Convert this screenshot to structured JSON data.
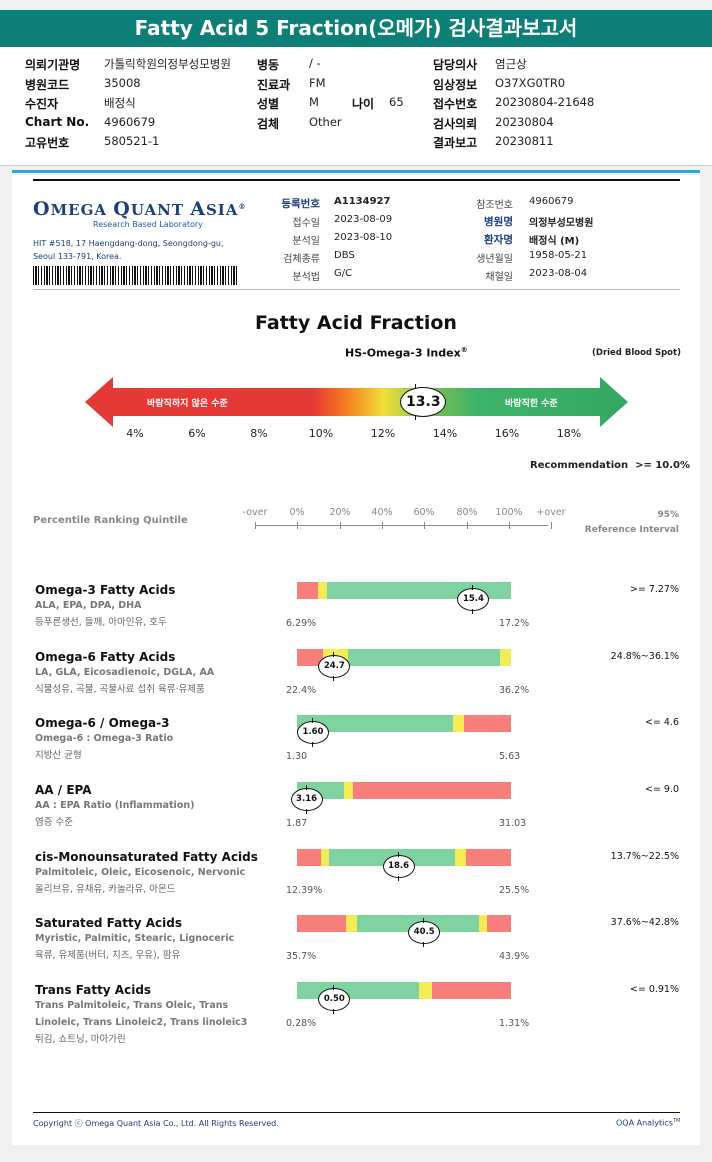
{
  "header": {
    "title": "Fatty Acid 5 Fraction(오메가) 검사결과보고서",
    "left": [
      {
        "label": "의뢰기관명",
        "value": "가톨릭학원의정부성모병원"
      },
      {
        "label": "병원코드",
        "value": "35008"
      },
      {
        "label": "수진자",
        "value": "배정식"
      },
      {
        "label": "Chart No.",
        "value": "4960679"
      },
      {
        "label": "고유번호",
        "value": "580521-1"
      }
    ],
    "mid": [
      {
        "label": "병동",
        "value": "/ -"
      },
      {
        "label": "진료과",
        "value": "FM"
      },
      {
        "label": "성별",
        "value": "M"
      },
      {
        "label": "검체",
        "value": "Other"
      }
    ],
    "age": {
      "label": "나이",
      "value": "65"
    },
    "right": [
      {
        "label": "담당의사",
        "value": "염근상"
      },
      {
        "label": "임상정보",
        "value": "O37XG0TR0"
      },
      {
        "label": "접수번호",
        "value": "20230804-21648"
      },
      {
        "label": "검사의뢰",
        "value": "20230804"
      },
      {
        "label": "결과보고",
        "value": "20230811"
      }
    ]
  },
  "lab": {
    "logo_part1": "O",
    "logo_part2": "MEGA ",
    "logo_part3": "Q",
    "logo_part4": "UANT ",
    "logo_part5": "A",
    "logo_part6": "SIA",
    "logo_reg": "®",
    "tagline": "Research Based Laboratory",
    "address_line1": "HIT #518, 17 Haengdang-dong, Seongdong-gu,",
    "address_line2": "Seoul 133-791, Korea."
  },
  "meta_left": [
    {
      "label": "등록번호",
      "value": "A1134927",
      "bold": true
    },
    {
      "label": "접수일",
      "value": "2023-08-09"
    },
    {
      "label": "분석일",
      "value": "2023-08-10"
    },
    {
      "label": "검체종류",
      "value": "DBS"
    },
    {
      "label": "분석법",
      "value": "G/C"
    }
  ],
  "meta_right": [
    {
      "label": "참조번호",
      "value": "4960679"
    },
    {
      "label": "병원명",
      "value": "의정부성모병원",
      "bold": true
    },
    {
      "label": "환자명",
      "value": "배정식 (M)",
      "bold": true
    },
    {
      "label": "생년월일",
      "value": "1958-05-21"
    },
    {
      "label": "채혈일",
      "value": "2023-08-04"
    }
  ],
  "chart_data": {
    "type": "table",
    "title": "Fatty Acid Fraction",
    "index": {
      "name": "HS-Omega-3 Index",
      "name_sup": "®",
      "sample_type": "(Dried Blood Spot)",
      "value": 13.3,
      "value_label": "13.3",
      "axis_min": 3,
      "axis_max": 19,
      "ticks": [
        "4%",
        "6%",
        "8%",
        "10%",
        "12%",
        "14%",
        "16%",
        "18%"
      ],
      "tick_values": [
        4,
        6,
        8,
        10,
        12,
        14,
        16,
        18
      ],
      "bad_label": "바람직하지 않은 수준",
      "good_label": "바람직한 수준",
      "recommendation_label": "Recommendation",
      "recommendation_value": ">= 10.0%"
    },
    "quintile": {
      "title": "Percentile Ranking Quintile",
      "axis_labels": [
        "-over",
        "0%",
        "20%",
        "40%",
        "60%",
        "80%",
        "100%",
        "+over"
      ],
      "ref_header1": "95%",
      "ref_header2": "Reference Interval"
    },
    "rows": [
      {
        "title": "Omega-3 Fatty Acids",
        "sub": [
          "ALA, EPA, DPA, DHA"
        ],
        "food": "등푸른생선, 들깨, 아마인유, 호두",
        "min": "6.29%",
        "max": "17.2%",
        "value": 15.4,
        "value_label": "15.4",
        "marker_pos": 0.82,
        "ref": ">= 7.27%",
        "segments": [
          {
            "c": "red",
            "from": 0,
            "to": 0.1
          },
          {
            "c": "yel",
            "from": 0.1,
            "to": 0.14
          },
          {
            "c": "grn",
            "from": 0.14,
            "to": 1.0
          }
        ]
      },
      {
        "title": "Omega-6 Fatty Acids",
        "sub": [
          "LA, GLA, Eicosadienoic, DGLA, AA"
        ],
        "food": "식물성유, 곡물, 곡물사료 섭취 육류·유제품",
        "min": "22.4%",
        "max": "36.2%",
        "value": 24.7,
        "value_label": "24.7",
        "marker_pos": 0.17,
        "ref": "24.8%~36.1%",
        "segments": [
          {
            "c": "red",
            "from": 0,
            "to": 0.12
          },
          {
            "c": "yel",
            "from": 0.12,
            "to": 0.24
          },
          {
            "c": "grn",
            "from": 0.24,
            "to": 0.95
          },
          {
            "c": "yel",
            "from": 0.95,
            "to": 1.0
          }
        ]
      },
      {
        "title": "Omega-6 / Omega-3",
        "sub": [
          "Omega-6 : Omega-3 Ratio"
        ],
        "food": "지방산 균형",
        "min": "1.30",
        "max": "5.63",
        "value": 1.6,
        "value_label": "1.60",
        "marker_pos": 0.07,
        "ref": "<= 4.6",
        "segments": [
          {
            "c": "grn",
            "from": 0,
            "to": 0.73
          },
          {
            "c": "yel",
            "from": 0.73,
            "to": 0.78
          },
          {
            "c": "red",
            "from": 0.78,
            "to": 1.0
          }
        ]
      },
      {
        "title": "AA / EPA",
        "sub": [
          "AA : EPA Ratio (Inflammation)"
        ],
        "food": "염증 수준",
        "min": "1.87",
        "max": "31.03",
        "value": 3.16,
        "value_label": "3.16",
        "marker_pos": 0.04,
        "ref": "<= 9.0",
        "segments": [
          {
            "c": "grn",
            "from": 0,
            "to": 0.22
          },
          {
            "c": "yel",
            "from": 0.22,
            "to": 0.26
          },
          {
            "c": "red",
            "from": 0.26,
            "to": 1.0
          }
        ]
      },
      {
        "title": "cis-Monounsaturated Fatty Acids",
        "sub": [
          "Palmitoleic, Oleic, Eicosenoic, Nervonic"
        ],
        "food": "올리브유, 유채유, 카놀라유, 아몬드",
        "min": "12.39%",
        "max": "25.5%",
        "value": 18.6,
        "value_label": "18.6",
        "marker_pos": 0.47,
        "ref": "13.7%~22.5%",
        "segments": [
          {
            "c": "red",
            "from": 0,
            "to": 0.11
          },
          {
            "c": "yel",
            "from": 0.11,
            "to": 0.15
          },
          {
            "c": "grn",
            "from": 0.15,
            "to": 0.74
          },
          {
            "c": "yel",
            "from": 0.74,
            "to": 0.79
          },
          {
            "c": "red",
            "from": 0.79,
            "to": 1.0
          }
        ]
      },
      {
        "title": "Saturated Fatty Acids",
        "sub": [
          "Myristic, Palmitic, Stearic, Lignoceric"
        ],
        "food": "육류, 유제품(버터, 치즈, 우유), 팜유",
        "min": "35.7%",
        "max": "43.9%",
        "value": 40.5,
        "value_label": "40.5",
        "marker_pos": 0.59,
        "ref": "37.6%~42.8%",
        "segments": [
          {
            "c": "red",
            "from": 0,
            "to": 0.23
          },
          {
            "c": "yel",
            "from": 0.23,
            "to": 0.28
          },
          {
            "c": "grn",
            "from": 0.28,
            "to": 0.85
          },
          {
            "c": "yel",
            "from": 0.85,
            "to": 0.89
          },
          {
            "c": "red",
            "from": 0.89,
            "to": 1.0
          }
        ]
      },
      {
        "title": "Trans Fatty Acids",
        "sub": [
          "Trans Palmitoleic, Trans Oleic, Trans",
          "Linoleic, Trans Linoleic2, Trans linoleic3"
        ],
        "food": "튀김, 쇼트닝, 마아가린",
        "min": "0.28%",
        "max": "1.31%",
        "value": 0.5,
        "value_label": "0.50",
        "marker_pos": 0.17,
        "ref": "<= 0.91%",
        "segments": [
          {
            "c": "grn",
            "from": 0,
            "to": 0.57
          },
          {
            "c": "yel",
            "from": 0.57,
            "to": 0.63
          },
          {
            "c": "red",
            "from": 0.63,
            "to": 1.0
          }
        ]
      }
    ]
  },
  "footer": {
    "copyright": "Copyright ⓒ Omega Quant Asia Co., Ltd.  All Rights Reserved.",
    "brand": "OQA Analytics",
    "brand_sup": "TM"
  }
}
